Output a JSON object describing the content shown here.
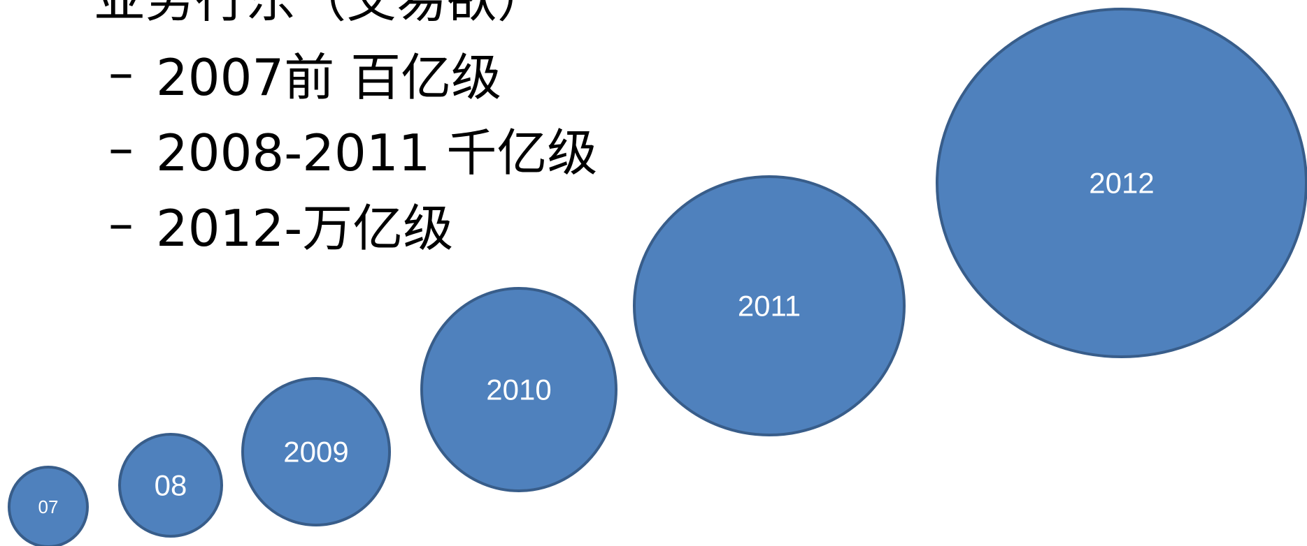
{
  "heading": "亚务行东（交易欲）",
  "bullets": [
    {
      "dash": "–",
      "text": "2007前 百亿级"
    },
    {
      "dash": "–",
      "text": "2008-2011 千亿级"
    },
    {
      "dash": "–",
      "text": "2012-万亿级"
    }
  ],
  "bubbles": [
    "07",
    "08",
    "2009",
    "2010",
    "2011",
    "2012"
  ],
  "colors": {
    "bubble_fill": "#4f81bd",
    "bubble_stroke": "#385d8a",
    "label": "#ffffff"
  }
}
